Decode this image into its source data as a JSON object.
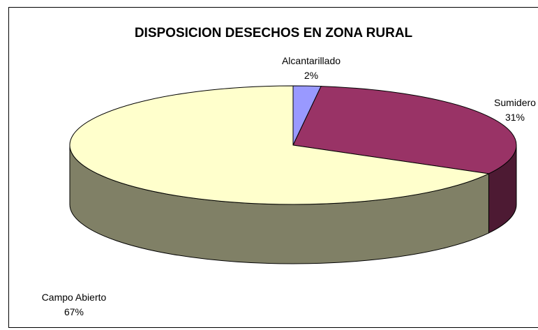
{
  "chart_data": {
    "type": "pie3d",
    "title": "DISPOSICION DESECHOS EN ZONA RURAL",
    "categories": [
      "Alcantarillado",
      "Sumidero",
      "Campo Abierto"
    ],
    "values": [
      2,
      31,
      67
    ],
    "value_labels": [
      "2%",
      "31%",
      "67%"
    ],
    "colors": [
      "#9999ff",
      "#993366",
      "#ffffcc"
    ]
  }
}
